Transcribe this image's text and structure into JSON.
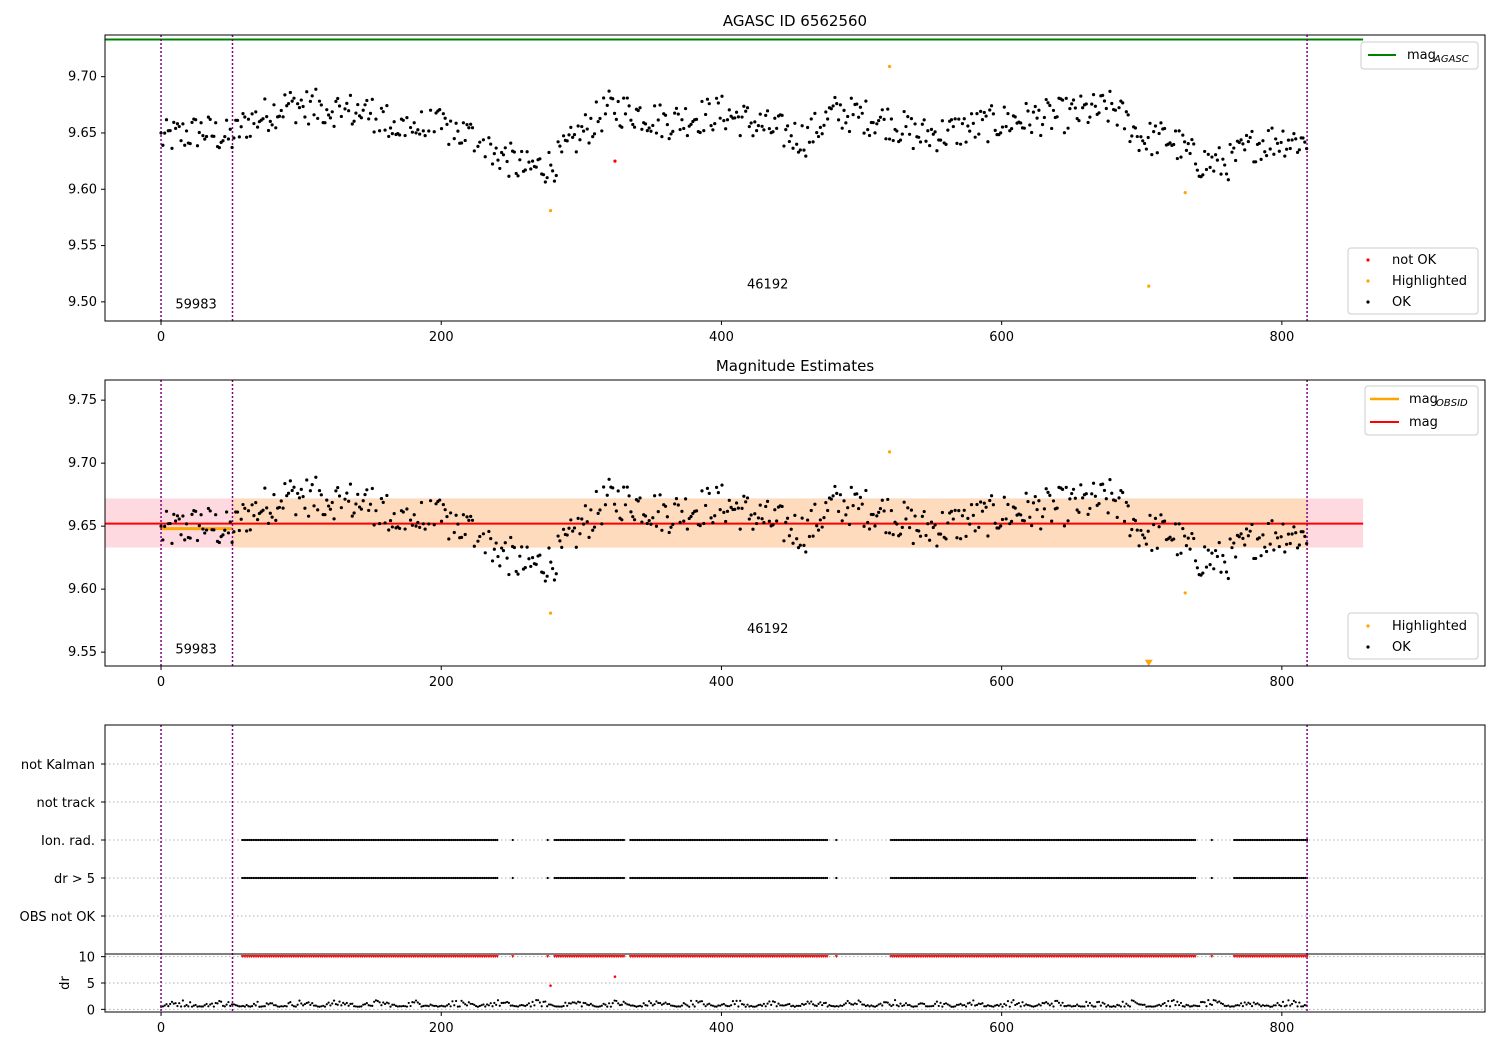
{
  "colors": {
    "ok": "#000000",
    "highlighted": "#ffa500",
    "not_ok": "#ff0000",
    "mag_agasc_line": "#008000",
    "mag_obsid_line": "#ffa500",
    "mag_line": "#ff0000",
    "band_outer": "#ffc0cb",
    "band_inner": "#ffdab9",
    "obs_boundary": "#800080",
    "grid": "#b0b0b0"
  },
  "chart_data": [
    {
      "type": "scatter",
      "title": "AGASC ID 6562560",
      "xlim": [
        -40,
        945
      ],
      "ylim": [
        9.483,
        9.737
      ],
      "xticks": [
        0,
        200,
        400,
        600,
        800
      ],
      "yticks": [
        9.5,
        9.55,
        9.6,
        9.65,
        9.7
      ],
      "ytick_labels": [
        "9.50",
        "9.55",
        "9.60",
        "9.65",
        "9.70"
      ],
      "obs_boundaries": [
        0,
        51,
        818
      ],
      "obs_labels": [
        {
          "text": "59983",
          "x": 25,
          "y": 9.494
        },
        {
          "text": "46192",
          "x": 433,
          "y": 9.512
        }
      ],
      "mag_agasc": 9.733,
      "mag_agasc_xrange": [
        -40,
        858
      ],
      "legend_upper": {
        "position": "upper right",
        "entries": [
          {
            "label": "mag",
            "subscript": "AGASC"
          }
        ]
      },
      "legend_lower": {
        "position": "lower right",
        "entries": [
          "not OK",
          "Highlighted",
          "OK"
        ]
      },
      "highlighted_points": [
        [
          278,
          9.581
        ],
        [
          520,
          9.709
        ],
        [
          705,
          9.514
        ],
        [
          731,
          9.597
        ]
      ],
      "not_ok_points": [
        [
          324,
          9.625
        ]
      ]
    },
    {
      "type": "scatter",
      "title": "Magnitude Estimates",
      "xlim": [
        -40,
        945
      ],
      "ylim": [
        9.539,
        9.766
      ],
      "xticks": [
        0,
        200,
        400,
        600,
        800
      ],
      "yticks": [
        9.55,
        9.6,
        9.65,
        9.7,
        9.75
      ],
      "ytick_labels": [
        "9.55",
        "9.60",
        "9.65",
        "9.70",
        "9.75"
      ],
      "obs_boundaries": [
        0,
        51,
        818
      ],
      "obs_labels": [
        {
          "text": "59983",
          "x": 25,
          "y": 9.549
        },
        {
          "text": "46192",
          "x": 433,
          "y": 9.565
        }
      ],
      "mag": 9.652,
      "mag_xrange": [
        -40,
        858
      ],
      "band_outer": [
        9.633,
        9.672
      ],
      "band_inner": [
        9.633,
        9.672
      ],
      "band_inner_xrange": [
        51,
        818
      ],
      "mag_obsid": 9.648,
      "mag_obsid_xrange": [
        0,
        51
      ],
      "legend_upper": {
        "position": "upper right",
        "entries": [
          {
            "label": "mag",
            "subscript": "OBSID"
          },
          {
            "label": "mag",
            "subscript": ""
          }
        ]
      },
      "legend_lower": {
        "position": "lower right",
        "entries": [
          "Highlighted",
          "OK"
        ]
      },
      "highlighted_points": [
        [
          278,
          9.581
        ],
        [
          520,
          9.709
        ],
        [
          731,
          9.597
        ],
        [
          705,
          9.542
        ]
      ],
      "series": [
        {
          "name": "OK",
          "generated": true
        }
      ]
    },
    {
      "type": "scatter",
      "title": "",
      "flag_labels": [
        "not Kalman",
        "not track",
        "Ion. rad.",
        "dr > 5",
        "OBS not OK"
      ],
      "flag_segments": {
        "Ion. rad.": [
          [
            58,
            241
          ],
          [
            251,
            251
          ],
          [
            276,
            276
          ],
          [
            281,
            331
          ],
          [
            335,
            476
          ],
          [
            482,
            482
          ],
          [
            521,
            739
          ],
          [
            750,
            750
          ],
          [
            766,
            818
          ]
        ],
        "dr > 5": [
          [
            58,
            241
          ],
          [
            251,
            251
          ],
          [
            276,
            276
          ],
          [
            281,
            331
          ],
          [
            335,
            476
          ],
          [
            482,
            482
          ],
          [
            521,
            739
          ],
          [
            750,
            750
          ],
          [
            766,
            818
          ]
        ]
      },
      "dr_yticks": [
        0,
        5,
        10
      ],
      "dr_ylim": [
        -0.5,
        10.5
      ],
      "dr_ylabel": "dr",
      "xlim": [
        -40,
        945
      ],
      "xticks": [
        0,
        200,
        400,
        600,
        800
      ],
      "obs_boundaries": [
        0,
        51,
        818
      ],
      "grid": "dotted horizontal"
    }
  ]
}
